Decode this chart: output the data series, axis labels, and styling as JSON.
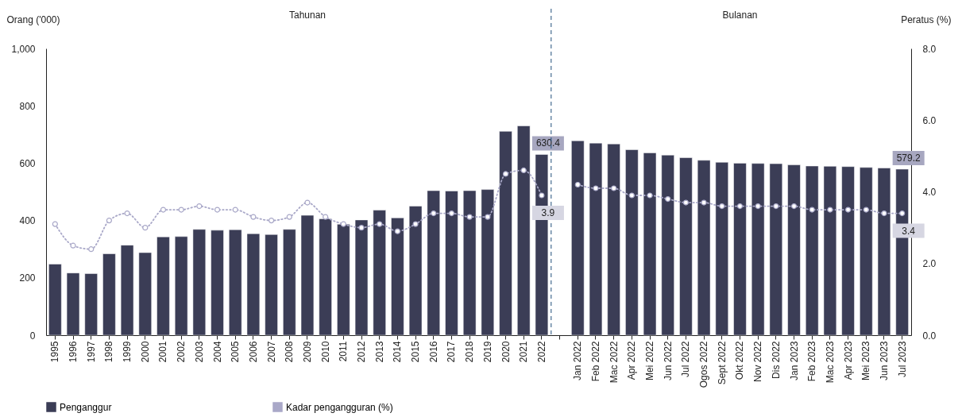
{
  "chart_data": {
    "type": "bar",
    "categories": [
      "1995",
      "1996",
      "1997",
      "1998",
      "1999",
      "2000",
      "2001",
      "2002",
      "2003",
      "2004",
      "2005",
      "2006",
      "2007",
      "2008",
      "2009",
      "2010",
      "2011",
      "2012",
      "2013",
      "2014",
      "2015",
      "2016",
      "2017",
      "2018",
      "2019",
      "2020",
      "2021",
      "2022",
      null,
      "Jan 2022",
      "Feb 2022",
      "Mac 2022",
      "Apr 2022",
      "Mei 2022",
      "Jun 2022",
      "Jul 2022",
      "Ogos 2022",
      "Sept 2022",
      "Okt 2022",
      "Nov 2022",
      "Dis 2022",
      "Jan 2023",
      "Feb 2023",
      "Mac 2023",
      "Apr 2023",
      "Mei 2023",
      "Jun 2023",
      "Jul 2023"
    ],
    "series": [
      {
        "name": "Penganggur",
        "color": "#3b3d56",
        "values": [
          248,
          217,
          215,
          284,
          314,
          288,
          343,
          344,
          369,
          366,
          368,
          354,
          351,
          369,
          418,
          406,
          387,
          402,
          436,
          409,
          450,
          504,
          503,
          504,
          508,
          711,
          730,
          630.4,
          null,
          678,
          670,
          667,
          647,
          636,
          628,
          619,
          610,
          603,
          600,
          599,
          598,
          594,
          590,
          589,
          588,
          585,
          583,
          579.2
        ],
        "value_labels": [
          null,
          null,
          null,
          null,
          null,
          null,
          null,
          null,
          null,
          null,
          null,
          null,
          null,
          null,
          null,
          null,
          null,
          null,
          null,
          null,
          null,
          null,
          null,
          null,
          null,
          null,
          null,
          "630.4",
          null,
          null,
          null,
          null,
          null,
          null,
          null,
          null,
          null,
          null,
          null,
          null,
          null,
          null,
          null,
          null,
          null,
          null,
          null,
          "579.2"
        ]
      },
      {
        "name": "Kadar pengangguran (%)",
        "type": "line",
        "axis": "y2",
        "color": "#a9a8c8",
        "marker": "circle",
        "line_style": "dotted",
        "values": [
          3.1,
          2.5,
          2.4,
          3.2,
          3.4,
          3.0,
          3.5,
          3.5,
          3.6,
          3.5,
          3.5,
          3.3,
          3.2,
          3.3,
          3.7,
          3.3,
          3.1,
          3.0,
          3.1,
          2.9,
          3.1,
          3.4,
          3.4,
          3.3,
          3.3,
          4.5,
          4.6,
          3.9,
          null,
          4.2,
          4.1,
          4.1,
          3.9,
          3.9,
          3.8,
          3.7,
          3.7,
          3.6,
          3.6,
          3.6,
          3.6,
          3.6,
          3.5,
          3.5,
          3.5,
          3.5,
          3.4,
          3.4
        ],
        "value_labels": [
          null,
          null,
          null,
          null,
          null,
          null,
          null,
          null,
          null,
          null,
          null,
          null,
          null,
          null,
          null,
          null,
          null,
          null,
          null,
          null,
          null,
          null,
          null,
          null,
          null,
          null,
          null,
          "3.9",
          null,
          null,
          null,
          null,
          null,
          null,
          null,
          null,
          null,
          null,
          null,
          null,
          null,
          null,
          null,
          null,
          null,
          null,
          null,
          "3.4"
        ]
      }
    ],
    "ylabel": "Orang ('000)",
    "y2label": "Peratus (%)",
    "ylim": [
      0,
      1000
    ],
    "yticks": [
      0,
      200,
      400,
      600,
      800,
      {
        "value": 1000,
        "label": "1,000"
      }
    ],
    "y2lim": [
      0,
      8
    ],
    "y2ticks": [
      {
        "value": 0,
        "label": "0.0"
      },
      {
        "value": 2,
        "label": "2.0"
      },
      {
        "value": 4,
        "label": "4.0"
      },
      {
        "value": 6,
        "label": "6.0"
      },
      {
        "value": 8,
        "label": "8.0"
      }
    ],
    "annotations": [
      "Tahunan",
      "Bulanan"
    ],
    "ref_lines": [
      {
        "axis": "x",
        "value": "2022",
        "color": "#1f4e79",
        "line_style": "dashed"
      }
    ],
    "grid": false,
    "legend": "bottom"
  }
}
